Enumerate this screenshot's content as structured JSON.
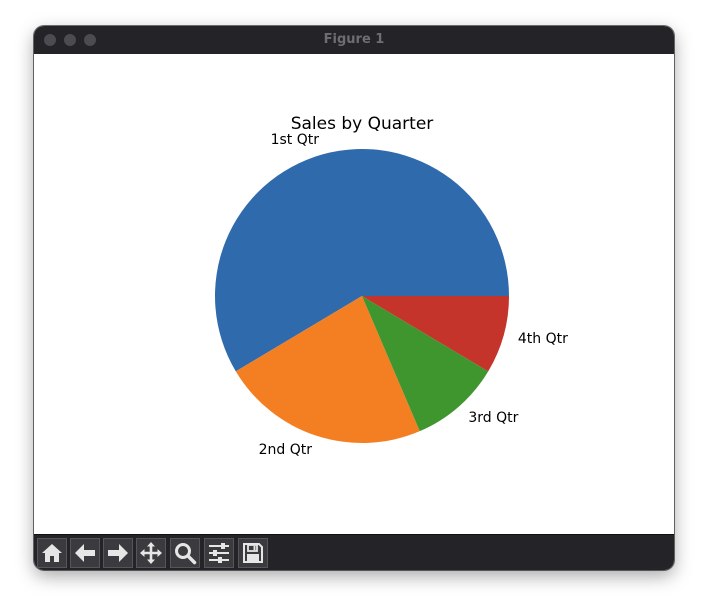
{
  "window": {
    "title": "Figure 1"
  },
  "toolbar": {
    "buttons": [
      {
        "name": "home",
        "icon": "home-icon"
      },
      {
        "name": "back",
        "icon": "arrow-left-icon"
      },
      {
        "name": "forward",
        "icon": "arrow-right-icon"
      },
      {
        "name": "pan",
        "icon": "move-icon"
      },
      {
        "name": "zoom",
        "icon": "magnifier-icon"
      },
      {
        "name": "configure-subplots",
        "icon": "sliders-icon"
      },
      {
        "name": "save",
        "icon": "floppy-disk-icon"
      }
    ]
  },
  "chart_data": {
    "type": "pie",
    "title": "Sales by Quarter",
    "categories": [
      "1st Qtr",
      "2nd Qtr",
      "3rd Qtr",
      "4th Qtr"
    ],
    "values": [
      8.2,
      3.2,
      1.4,
      1.2
    ],
    "colors": [
      "#2f6aad",
      "#f37f22",
      "#3f962f",
      "#c4342a"
    ],
    "counterclock": true,
    "startangle": 0
  }
}
